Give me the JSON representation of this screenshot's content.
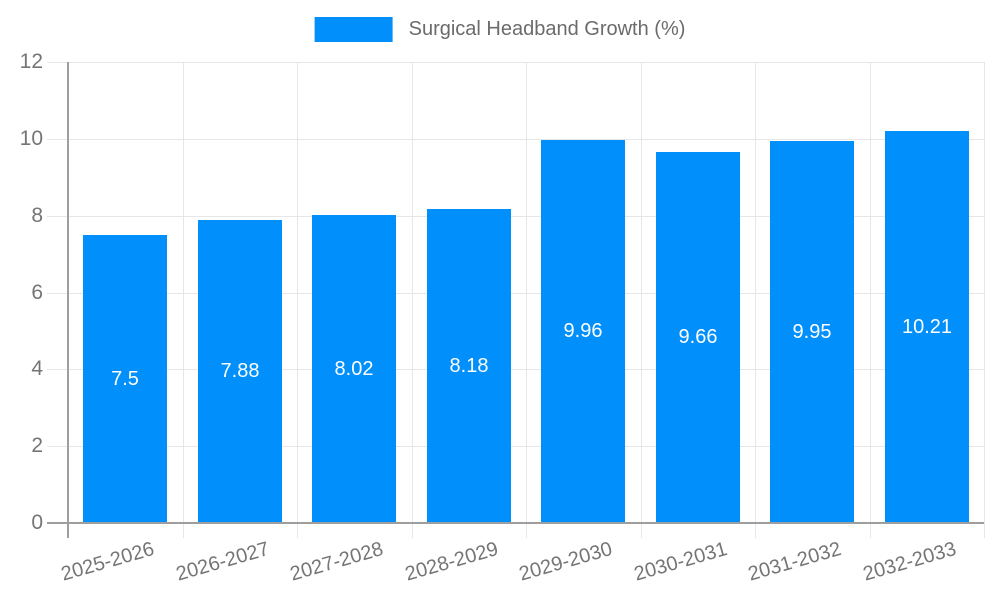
{
  "legend": {
    "label": "Surgical Headband Growth (%)"
  },
  "colors": {
    "bar": "#008FFB",
    "grid": "#e6e6e6",
    "axis": "#9e9e9e",
    "tick_label": "#757575",
    "legend_text": "#6b6b6b",
    "value_label": "#ffffff",
    "background": "#ffffff"
  },
  "chart_data": {
    "type": "bar",
    "title": "Surgical Headband Growth (%)",
    "categories": [
      "2025-2026",
      "2026-2027",
      "2027-2028",
      "2028-2029",
      "2029-2030",
      "2030-2031",
      "2031-2032",
      "2032-2033"
    ],
    "values": [
      7.5,
      7.88,
      8.02,
      8.18,
      9.96,
      9.66,
      9.95,
      10.21
    ],
    "value_labels": [
      "7.5",
      "7.88",
      "8.02",
      "8.18",
      "9.96",
      "9.66",
      "9.95",
      "10.21"
    ],
    "xlabel": "",
    "ylabel": "",
    "ylim": [
      0,
      12
    ],
    "yticks": [
      0,
      2,
      4,
      6,
      8,
      10,
      12
    ],
    "grid": true,
    "legend_position": "top-center",
    "x_label_rotation_deg": -16,
    "bar_color": "#008FFB"
  }
}
